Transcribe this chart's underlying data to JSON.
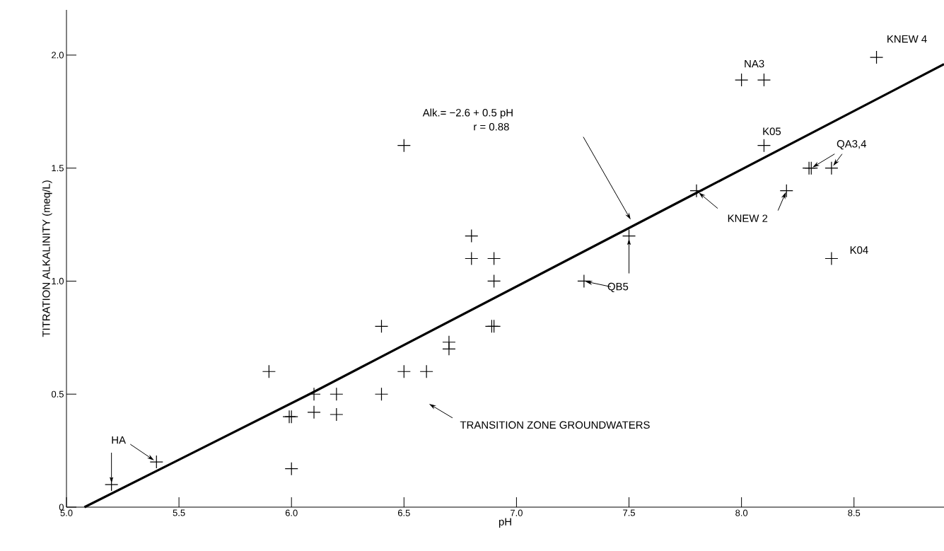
{
  "chart_data": {
    "type": "scatter",
    "xlabel": "pH",
    "ylabel": "TITRATION ALKALINITY (meq/L)",
    "xlim": [
      5.0,
      8.9
    ],
    "ylim": [
      0,
      2.2
    ],
    "xticks": [
      {
        "value": 5,
        "label": "5.0"
      },
      5.5,
      {
        "value": 6,
        "label": "6.0"
      },
      6.5,
      {
        "value": 7,
        "label": "7.0"
      },
      7.5,
      {
        "value": 8,
        "label": "8.0"
      },
      8.5
    ],
    "yticks": [
      0,
      0.5,
      {
        "value": 1,
        "label": "1.0"
      },
      1.5,
      {
        "value": 2,
        "label": "2.0"
      }
    ],
    "marker": "cross",
    "series": [
      {
        "color": "#000000",
        "x": [
          5.2,
          5.4,
          5.9,
          5.99,
          6.0,
          6.0,
          6.1,
          6.1,
          6.2,
          6.2,
          6.4,
          6.4,
          6.5,
          6.5,
          6.6,
          6.7,
          6.7,
          6.8,
          6.8,
          6.9,
          6.9,
          6.89,
          6.9,
          7.3,
          7.5,
          7.8,
          8.2,
          8.0,
          8.1,
          8.1,
          8.3,
          8.31,
          8.4,
          8.4,
          8.6
        ],
        "values": [
          0.1,
          0.2,
          0.6,
          0.4,
          0.4,
          0.17,
          0.5,
          0.42,
          0.5,
          0.41,
          0.8,
          0.5,
          1.6,
          0.6,
          0.6,
          0.73,
          0.7,
          1.2,
          1.1,
          1.1,
          1.0,
          0.8,
          0.8,
          1.0,
          1.2,
          1.4,
          1.4,
          1.89,
          1.89,
          1.6,
          1.5,
          1.5,
          1.5,
          1.1,
          1.99
        ]
      },
      {
        "type": "line",
        "marker": "none",
        "color": "#000000",
        "x": [
          5.08,
          6.08,
          7.78,
          8.9
        ],
        "values": [
          0,
          0.5,
          1.38,
          1.96
        ]
      }
    ],
    "annotations": [
      {
        "text": "HA",
        "x": 5.2,
        "y": 0.1
      },
      "Alk.= −2.6 + 0.5 pH",
      "r = 0.88",
      "TRANSITION ZONE GROUNDWATERS",
      {
        "text": "QB5",
        "x": 7.3,
        "y": 1.0
      },
      {
        "text": "KNEW 2",
        "x": 8.2,
        "y": 1.4
      },
      {
        "text": "QA3,4",
        "x": 8.31,
        "y": 1.5
      },
      {
        "text": "NA3",
        "x": 8.0,
        "y": 1.89
      },
      {
        "text": "K05",
        "x": 8.1,
        "y": 1.6
      },
      {
        "text": "KNEW 4",
        "x": 8.6,
        "y": 1.99
      },
      {
        "text": "K04",
        "x": 8.4,
        "y": 1.1
      }
    ]
  }
}
